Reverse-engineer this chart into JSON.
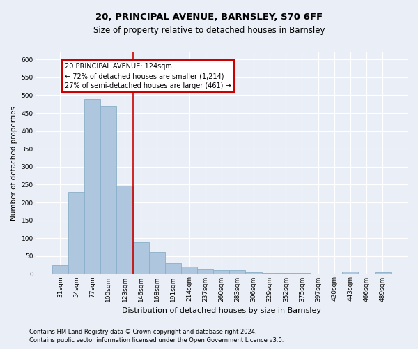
{
  "title1": "20, PRINCIPAL AVENUE, BARNSLEY, S70 6FF",
  "title2": "Size of property relative to detached houses in Barnsley",
  "xlabel": "Distribution of detached houses by size in Barnsley",
  "ylabel": "Number of detached properties",
  "footnote1": "Contains HM Land Registry data © Crown copyright and database right 2024.",
  "footnote2": "Contains public sector information licensed under the Open Government Licence v3.0.",
  "bar_labels": [
    "31sqm",
    "54sqm",
    "77sqm",
    "100sqm",
    "123sqm",
    "146sqm",
    "168sqm",
    "191sqm",
    "214sqm",
    "237sqm",
    "260sqm",
    "283sqm",
    "306sqm",
    "329sqm",
    "352sqm",
    "375sqm",
    "397sqm",
    "420sqm",
    "443sqm",
    "466sqm",
    "489sqm"
  ],
  "bar_values": [
    25,
    230,
    490,
    470,
    248,
    88,
    62,
    30,
    21,
    12,
    10,
    10,
    5,
    3,
    3,
    2,
    1,
    1,
    6,
    1,
    4
  ],
  "bar_color": "#aec6de",
  "bar_edge_color": "#8aafc8",
  "highlight_index": 4,
  "highlight_line_color": "#cc0000",
  "annotation_line1": "20 PRINCIPAL AVENUE: 124sqm",
  "annotation_line2": "← 72% of detached houses are smaller (1,214)",
  "annotation_line3": "27% of semi-detached houses are larger (461) →",
  "annotation_box_color": "#cc0000",
  "ylim": [
    0,
    620
  ],
  "yticks": [
    0,
    50,
    100,
    150,
    200,
    250,
    300,
    350,
    400,
    450,
    500,
    550,
    600
  ],
  "bg_color": "#eaeff7",
  "plot_bg_color": "#eaeff7",
  "grid_color": "#ffffff",
  "title1_fontsize": 9.5,
  "title2_fontsize": 8.5,
  "ylabel_fontsize": 7.5,
  "xlabel_fontsize": 8.0,
  "tick_fontsize": 6.5,
  "annot_fontsize": 7.0,
  "footnote_fontsize": 6.0
}
